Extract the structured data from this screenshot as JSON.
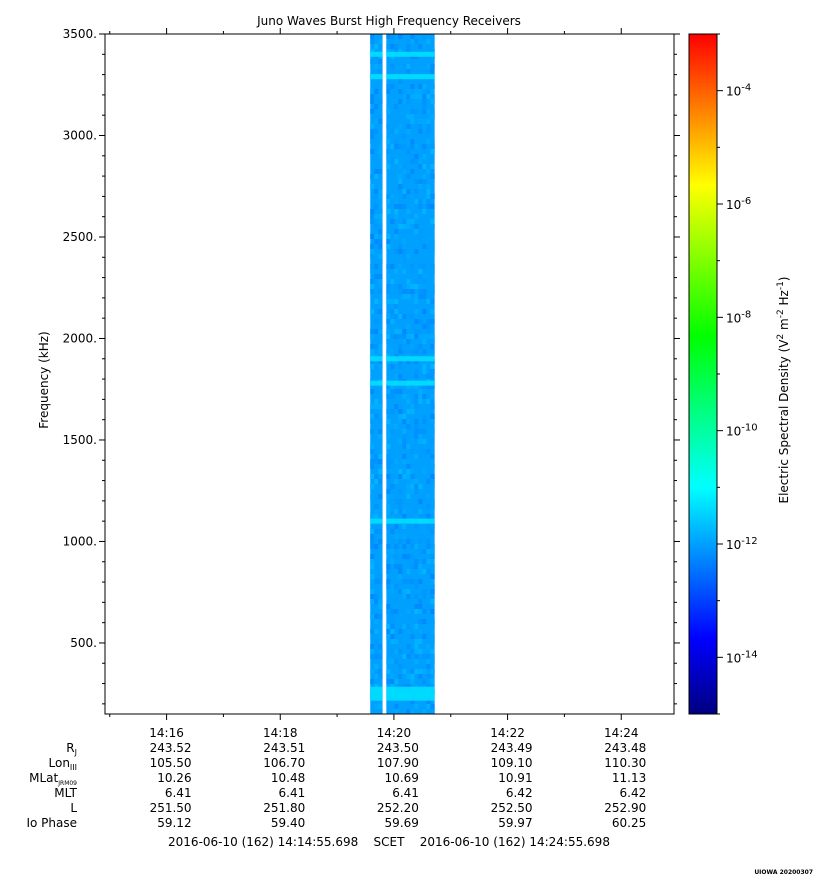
{
  "chart_data": {
    "type": "heatmap",
    "title": "Juno Waves Burst High Frequency Receivers",
    "ylabel": "Frequency (kHz)",
    "colorbar_label": "Electric Spectral Density (V² m⁻² Hz⁻¹)",
    "colorbar_label_parts": [
      "Electric Spectral Density (V",
      "2",
      " m",
      "-2",
      " Hz",
      "-1",
      ")"
    ],
    "colorbar_scale": "log",
    "colorbar_range": [
      1e-15,
      0.001
    ],
    "colorbar_ticks": [
      {
        "base": "10",
        "exp": "-4",
        "value": 0.0001
      },
      {
        "base": "10",
        "exp": "-6",
        "value": 1e-06
      },
      {
        "base": "10",
        "exp": "-8",
        "value": 1e-08
      },
      {
        "base": "10",
        "exp": "-10",
        "value": 1e-10
      },
      {
        "base": "10",
        "exp": "-12",
        "value": 1e-12
      },
      {
        "base": "10",
        "exp": "-14",
        "value": 1e-14
      }
    ],
    "colormap": [
      "#000080",
      "#0000ff",
      "#0080ff",
      "#00ffff",
      "#00ff80",
      "#00ff00",
      "#80ff00",
      "#ffff00",
      "#ff8000",
      "#ff0000"
    ],
    "ylim": [
      150,
      3500
    ],
    "y_ticks": [
      500,
      1000,
      1500,
      2000,
      2500,
      3000,
      3500
    ],
    "y_tick_labels": [
      "500.",
      "1000.",
      "1500.",
      "2000.",
      "2500.",
      "3000.",
      "3500."
    ],
    "xlim_minutes": [
      14.9163,
      24.9283
    ],
    "x_ticks_minutes": [
      16,
      18,
      20,
      22,
      24
    ],
    "x_tick_labels": [
      "14:16",
      "14:18",
      "14:20",
      "14:22",
      "14:24"
    ],
    "data_blocks": [
      {
        "start": "14:19:35",
        "end": "14:19:48",
        "freq_range_khz": [
          150,
          3500
        ],
        "typical_density": 1e-12
      },
      {
        "start": "14:19:52",
        "end": "14:20:43",
        "freq_range_khz": [
          150,
          3500
        ],
        "typical_density": 1e-12
      }
    ],
    "enhanced_bands_khz": [
      3400,
      3290,
      1900,
      1780,
      1100,
      250
    ],
    "ephemeris": {
      "rows": [
        {
          "label": "R",
          "sub": "J",
          "values": [
            "243.52",
            "243.51",
            "243.50",
            "243.49",
            "243.48"
          ]
        },
        {
          "label": "Lon",
          "sub": "III",
          "values": [
            "105.50",
            "106.70",
            "107.90",
            "109.10",
            "110.30"
          ]
        },
        {
          "label": "MLat",
          "sub": "JRM09",
          "values": [
            "10.26",
            "10.48",
            "10.69",
            "10.91",
            "11.13"
          ]
        },
        {
          "label": "MLT",
          "sub": "",
          "values": [
            "6.41",
            "6.41",
            "6.41",
            "6.42",
            "6.42"
          ]
        },
        {
          "label": "L",
          "sub": "",
          "values": [
            "251.50",
            "251.80",
            "252.20",
            "252.50",
            "252.90"
          ]
        },
        {
          "label": "Io Phase",
          "sub": "",
          "values": [
            "59.12",
            "59.40",
            "59.69",
            "59.97",
            "60.25"
          ]
        }
      ]
    },
    "time_range_text": "2016-06-10 (162) 14:14:55.698    SCET    2016-06-10 (162) 14:24:55.698",
    "footer": "UIOWA 20200307"
  }
}
